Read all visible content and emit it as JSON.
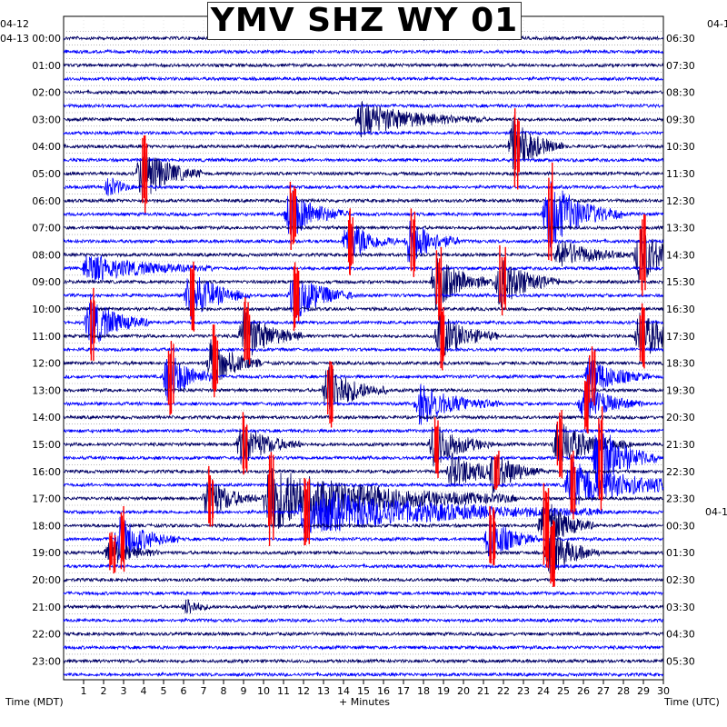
{
  "title": "YMV SHZ WY 01",
  "left_date_top": "04-12",
  "left_date_second": "04-13",
  "right_date_top": "04-1",
  "right_date_mid": "04-1",
  "left_axis_label": "Time (MDT)",
  "bottom_axis_label": "+ Minutes",
  "right_axis_label": "Time (UTC)",
  "colors": [
    "#000066",
    "#0000ff"
  ],
  "clip_color": "#ff0000",
  "chart_data": {
    "type": "helicorder",
    "title": "YMV SHZ WY 01",
    "xlabel": "+ Minutes",
    "ylabel_left": "Time (MDT)",
    "ylabel_right": "Time (UTC)",
    "xlim": [
      0,
      30
    ],
    "x_ticks": [
      "1",
      "2",
      "3",
      "4",
      "5",
      "6",
      "7",
      "8",
      "9",
      "10",
      "11",
      "12",
      "13",
      "14",
      "15",
      "16",
      "17",
      "18",
      "19",
      "20",
      "21",
      "22",
      "23",
      "24",
      "25",
      "26",
      "27",
      "28",
      "29",
      "30"
    ],
    "left_hour_labels": [
      "00:00",
      "01:00",
      "02:00",
      "03:00",
      "04:00",
      "05:00",
      "06:00",
      "07:00",
      "08:00",
      "09:00",
      "10:00",
      "11:00",
      "12:00",
      "13:00",
      "14:00",
      "15:00",
      "16:00",
      "17:00",
      "18:00",
      "19:00",
      "20:00",
      "21:00",
      "22:00",
      "23:00"
    ],
    "right_hour_labels": [
      "06:30",
      "07:30",
      "08:30",
      "09:30",
      "10:30",
      "11:30",
      "12:30",
      "13:30",
      "14:30",
      "15:30",
      "16:30",
      "17:30",
      "18:30",
      "19:30",
      "20:30",
      "21:30",
      "22:30",
      "23:30",
      "00:30",
      "01:30",
      "02:30",
      "03:30",
      "04:30",
      "05:30"
    ],
    "traces_per_hour": 2,
    "grid": true,
    "events": [
      {
        "trace": 6,
        "minute": 14.8,
        "amp": 1.2,
        "dur": 2.5,
        "clip": false
      },
      {
        "trace": 8,
        "minute": 22.5,
        "amp": 2.0,
        "dur": 1.0,
        "clip": true
      },
      {
        "trace": 10,
        "minute": 3.9,
        "amp": 2.0,
        "dur": 1.2,
        "clip": true
      },
      {
        "trace": 11,
        "minute": 2.3,
        "amp": 0.8,
        "dur": 0.5,
        "clip": false
      },
      {
        "trace": 13,
        "minute": 11.3,
        "amp": 1.8,
        "dur": 1.2,
        "clip": true
      },
      {
        "trace": 13,
        "minute": 24.2,
        "amp": 2.5,
        "dur": 1.5,
        "clip": true
      },
      {
        "trace": 15,
        "minute": 14.2,
        "amp": 1.6,
        "dur": 1.0,
        "clip": true
      },
      {
        "trace": 15,
        "minute": 17.3,
        "amp": 1.8,
        "dur": 1.0,
        "clip": true
      },
      {
        "trace": 16,
        "minute": 24.8,
        "amp": 1.0,
        "dur": 1.5,
        "clip": false
      },
      {
        "trace": 16,
        "minute": 28.8,
        "amp": 2.0,
        "dur": 1.2,
        "clip": true
      },
      {
        "trace": 17,
        "minute": 1.2,
        "amp": 1.0,
        "dur": 2.5,
        "clip": false
      },
      {
        "trace": 18,
        "minute": 18.6,
        "amp": 1.8,
        "dur": 1.2,
        "clip": true
      },
      {
        "trace": 18,
        "minute": 21.8,
        "amp": 1.8,
        "dur": 1.2,
        "clip": true
      },
      {
        "trace": 19,
        "minute": 11.5,
        "amp": 1.8,
        "dur": 1.2,
        "clip": true
      },
      {
        "trace": 19,
        "minute": 6.3,
        "amp": 1.8,
        "dur": 1.2,
        "clip": true
      },
      {
        "trace": 21,
        "minute": 1.3,
        "amp": 1.8,
        "dur": 1.2,
        "clip": true
      },
      {
        "trace": 22,
        "minute": 9.0,
        "amp": 1.8,
        "dur": 1.2,
        "clip": true
      },
      {
        "trace": 22,
        "minute": 18.8,
        "amp": 1.6,
        "dur": 1.2,
        "clip": true
      },
      {
        "trace": 22,
        "minute": 28.8,
        "amp": 1.6,
        "dur": 1.5,
        "clip": true
      },
      {
        "trace": 24,
        "minute": 7.4,
        "amp": 1.8,
        "dur": 1.0,
        "clip": true
      },
      {
        "trace": 25,
        "minute": 5.2,
        "amp": 1.8,
        "dur": 1.0,
        "clip": true
      },
      {
        "trace": 25,
        "minute": 26.3,
        "amp": 1.4,
        "dur": 1.2,
        "clip": true
      },
      {
        "trace": 26,
        "minute": 13.2,
        "amp": 1.8,
        "dur": 1.2,
        "clip": true
      },
      {
        "trace": 27,
        "minute": 17.8,
        "amp": 1.4,
        "dur": 1.6,
        "clip": false
      },
      {
        "trace": 27,
        "minute": 26.0,
        "amp": 1.4,
        "dur": 1.2,
        "clip": true
      },
      {
        "trace": 30,
        "minute": 8.9,
        "amp": 1.5,
        "dur": 1.2,
        "clip": true
      },
      {
        "trace": 30,
        "minute": 18.5,
        "amp": 1.6,
        "dur": 1.2,
        "clip": true
      },
      {
        "trace": 30,
        "minute": 24.7,
        "amp": 1.6,
        "dur": 1.5,
        "clip": true
      },
      {
        "trace": 31,
        "minute": 26.7,
        "amp": 2.5,
        "dur": 1.2,
        "clip": true
      },
      {
        "trace": 32,
        "minute": 19.4,
        "amp": 1.2,
        "dur": 1.5,
        "clip": false
      },
      {
        "trace": 32,
        "minute": 21.5,
        "amp": 1.2,
        "dur": 1.0,
        "clip": true
      },
      {
        "trace": 33,
        "minute": 25.3,
        "amp": 1.6,
        "dur": 3.0,
        "clip": true
      },
      {
        "trace": 34,
        "minute": 7.2,
        "amp": 1.6,
        "dur": 1.0,
        "clip": true
      },
      {
        "trace": 34,
        "minute": 10.2,
        "amp": 2.2,
        "dur": 5.0,
        "clip": true
      },
      {
        "trace": 35,
        "minute": 12.0,
        "amp": 1.6,
        "dur": 6.0,
        "clip": true
      },
      {
        "trace": 36,
        "minute": 24.0,
        "amp": 2.0,
        "dur": 1.0,
        "clip": true
      },
      {
        "trace": 37,
        "minute": 2.8,
        "amp": 1.6,
        "dur": 1.2,
        "clip": true
      },
      {
        "trace": 37,
        "minute": 21.3,
        "amp": 1.6,
        "dur": 1.0,
        "clip": true
      },
      {
        "trace": 38,
        "minute": 2.3,
        "amp": 1.0,
        "dur": 1.0,
        "clip": true
      },
      {
        "trace": 38,
        "minute": 24.3,
        "amp": 1.8,
        "dur": 1.0,
        "clip": true
      },
      {
        "trace": 42,
        "minute": 6.2,
        "amp": 0.6,
        "dur": 0.5,
        "clip": false
      }
    ]
  }
}
